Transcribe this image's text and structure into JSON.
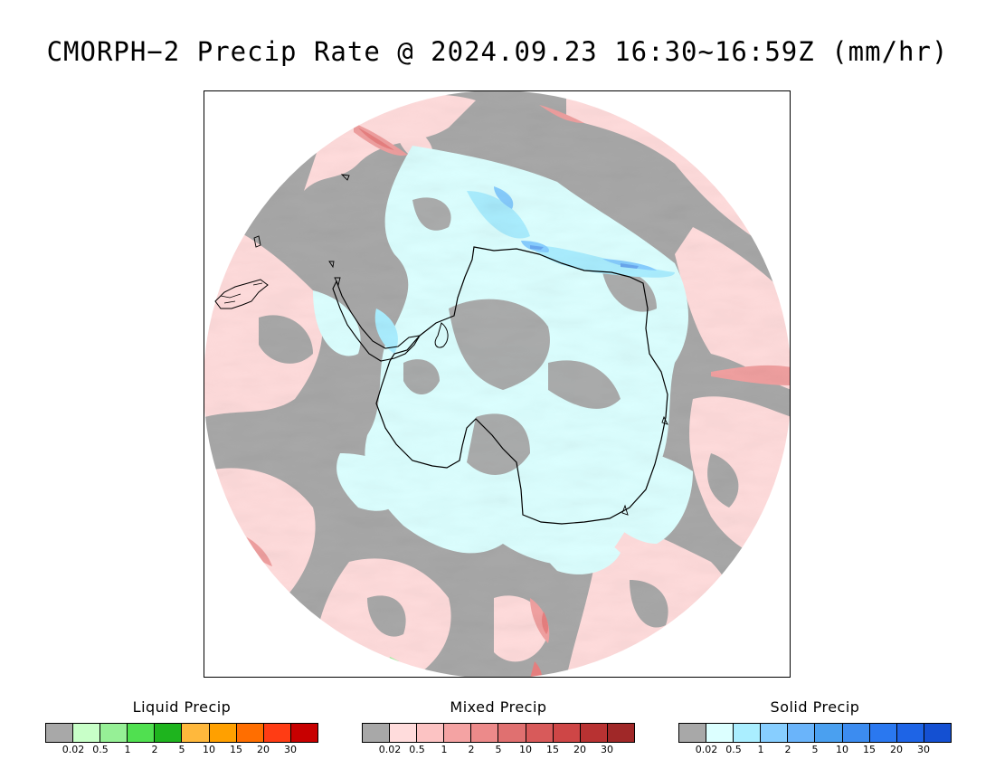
{
  "title": "CMORPH−2 Precip Rate @ 2024.09.23 16:30~16:59Z (mm/hr)",
  "chart_data": {
    "type": "heatmap",
    "projection": "south-polar-stereographic",
    "region": "Antarctica / Southern Ocean",
    "units": "mm/hr",
    "no_data_color": "#ffffff",
    "background_color": "#a8a8a8",
    "dominant_fields": [
      {
        "category": "Mixed Precip",
        "level": "0.02",
        "color": "#ffdcdc"
      },
      {
        "category": "Solid Precip",
        "level": "0.02",
        "color": "#dcffff"
      },
      {
        "category": "Solid Precip",
        "level": "0.5",
        "color": "#aaeeff"
      },
      {
        "category": "Solid Precip",
        "level": "1",
        "color": "#87ceff"
      },
      {
        "category": "Solid Precip",
        "level": "2",
        "color": "#6aa8f0"
      },
      {
        "category": "Mixed Precip",
        "level": "1",
        "color": "#f0a0a0"
      },
      {
        "category": "Mixed Precip",
        "level": "2",
        "color": "#e88080"
      }
    ],
    "legends": [
      {
        "title": "Liquid Precip",
        "colors": [
          "#a8a8a8",
          "#c8ffc8",
          "#96f096",
          "#50e050",
          "#1eb41e",
          "#ffb83c",
          "#ffa000",
          "#ff6e00",
          "#ff3c14",
          "#c80000"
        ],
        "ticks": [
          "0.02",
          "0.5",
          "1",
          "2",
          "5",
          "10",
          "15",
          "20",
          "30"
        ]
      },
      {
        "title": "Mixed Precip",
        "colors": [
          "#a8a8a8",
          "#ffdcdc",
          "#fcc3c3",
          "#f4a3a3",
          "#ec8a8a",
          "#e07070",
          "#d85a5a",
          "#ce4646",
          "#b83232",
          "#a02828"
        ],
        "ticks": [
          "0.02",
          "0.5",
          "1",
          "2",
          "5",
          "10",
          "15",
          "20",
          "30"
        ]
      },
      {
        "title": "Solid Precip",
        "colors": [
          "#a8a8a8",
          "#dcffff",
          "#aaeeff",
          "#87ceff",
          "#6ab4fa",
          "#4aa0f0",
          "#3c8cf0",
          "#2a78f0",
          "#1e64e6",
          "#1450d2"
        ],
        "ticks": [
          "0.02",
          "0.5",
          "1",
          "2",
          "5",
          "10",
          "15",
          "20",
          "30"
        ]
      }
    ]
  }
}
